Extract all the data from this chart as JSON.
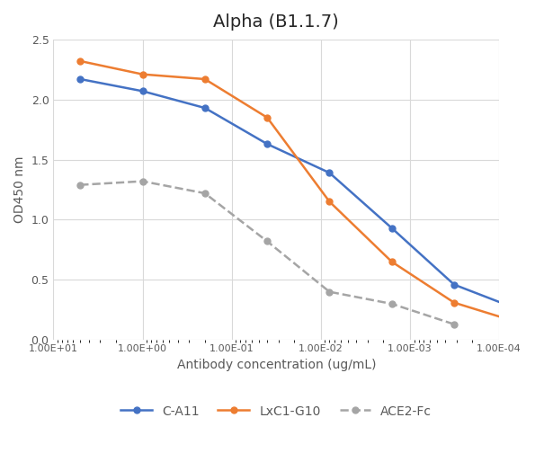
{
  "title": "Alpha (B1.1.7)",
  "xlabel": "Antibody concentration (ug/mL)",
  "ylabel": "OD450 nm",
  "ylim": [
    0,
    2.5
  ],
  "series": {
    "C-A11": {
      "x": [
        5.0,
        1.0,
        0.2,
        0.04,
        0.008,
        0.0016,
        0.00032,
        6.4e-05
      ],
      "y": [
        2.17,
        2.07,
        1.93,
        1.63,
        1.39,
        0.93,
        0.46,
        0.26
      ],
      "color": "#4472c4",
      "marker": "o",
      "linestyle": "-",
      "zorder": 3
    },
    "LxC1-G10": {
      "x": [
        5.0,
        1.0,
        0.2,
        0.04,
        0.008,
        0.0016,
        0.00032,
        6.4e-05
      ],
      "y": [
        2.32,
        2.21,
        2.17,
        1.85,
        1.15,
        0.65,
        0.31,
        0.15
      ],
      "color": "#ed7d31",
      "marker": "o",
      "linestyle": "-",
      "zorder": 3
    },
    "ACE2-Fc": {
      "x": [
        5.0,
        1.0,
        0.2,
        0.04,
        0.008,
        0.0016,
        0.00032
      ],
      "y": [
        1.29,
        1.32,
        1.22,
        0.82,
        0.4,
        0.3,
        0.13
      ],
      "color": "#a5a5a5",
      "marker": "o",
      "linestyle": "--",
      "zorder": 2
    }
  },
  "yticks": [
    0,
    0.5,
    1.0,
    1.5,
    2.0,
    2.5
  ],
  "xtick_vals": [
    10.0,
    1.0,
    0.1,
    0.01,
    0.001,
    0.0001
  ],
  "xtick_labels": [
    "1.00E+01",
    "1.00E+00",
    "1.00E-01",
    "1.00E-02",
    "1.00E-03",
    "1.00E-04"
  ],
  "xlim_left": 10.0,
  "xlim_right": 0.0001,
  "background_color": "#ffffff",
  "grid_color": "#d9d9d9",
  "title_fontsize": 14,
  "axis_label_fontsize": 10,
  "tick_fontsize": 9,
  "xtick_fontsize": 8,
  "line_width": 1.8,
  "marker_size": 5,
  "legend_fontsize": 10
}
